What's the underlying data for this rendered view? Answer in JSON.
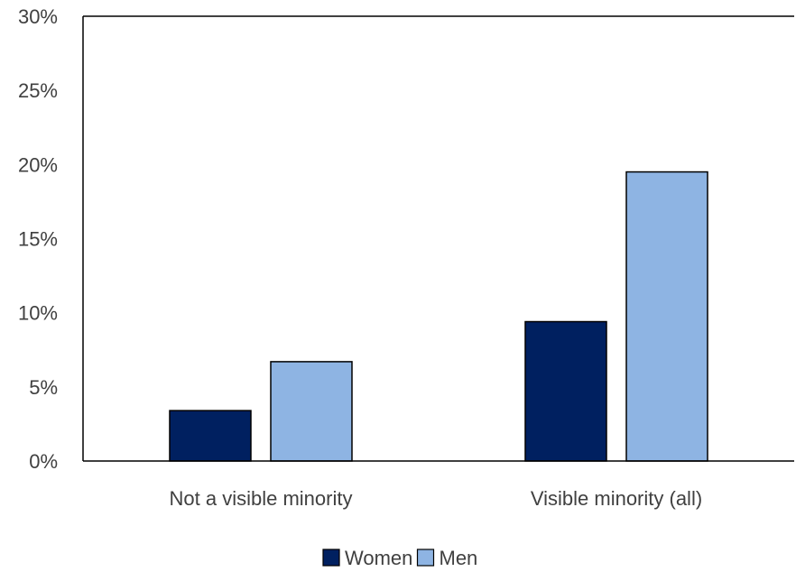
{
  "chart_data": {
    "type": "bar",
    "categories": [
      "Not a visible minority",
      "Visible minority (all)"
    ],
    "series": [
      {
        "name": "Women",
        "values": [
          3.4,
          9.4
        ],
        "color": "#002060"
      },
      {
        "name": "Men",
        "values": [
          6.7,
          19.5
        ],
        "color": "#8EB4E3"
      }
    ],
    "ylim": [
      0,
      30
    ],
    "ytick_step": 5,
    "ytick_format": "percent",
    "grid": false,
    "legend": "bottom",
    "bar_edge_color": "#000000"
  }
}
